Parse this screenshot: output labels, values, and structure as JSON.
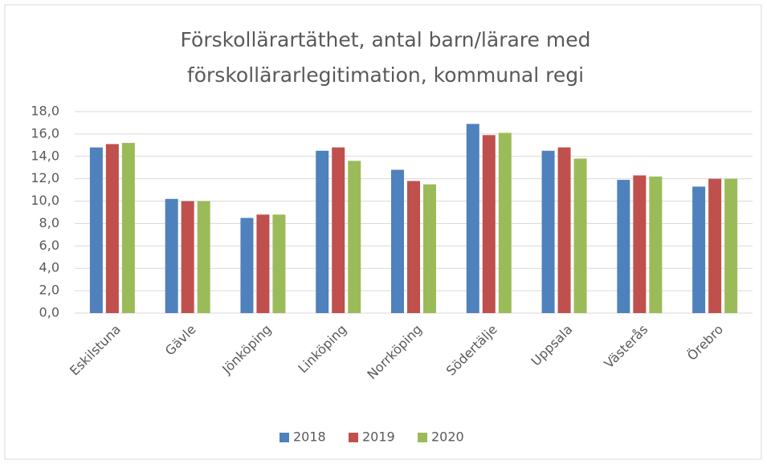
{
  "chart_data": {
    "type": "bar",
    "title": "Förskollärartäthet, antal barn/lärare med förskollärarlegitimation, kommunal regi",
    "categories": [
      "Eskilstuna",
      "Gävle",
      "Jönköping",
      "Linköping",
      "Norrköping",
      "Södertälje",
      "Uppsala",
      "Västerås",
      "Örebro"
    ],
    "series": [
      {
        "name": "2018",
        "color": "#4f81bd",
        "values": [
          14.8,
          10.2,
          8.5,
          14.5,
          12.8,
          16.9,
          14.5,
          11.9,
          11.3
        ]
      },
      {
        "name": "2019",
        "color": "#c0504d",
        "values": [
          15.1,
          10.0,
          8.8,
          14.8,
          11.8,
          15.9,
          14.8,
          12.3,
          12.0
        ]
      },
      {
        "name": "2020",
        "color": "#9bbb59",
        "values": [
          15.2,
          10.0,
          8.8,
          13.6,
          11.5,
          16.1,
          13.8,
          12.2,
          12.0
        ]
      }
    ],
    "ylim": [
      0,
      18
    ],
    "yticks": [
      {
        "value": 0,
        "label": "0,0"
      },
      {
        "value": 2,
        "label": "2,0"
      },
      {
        "value": 4,
        "label": "4,0"
      },
      {
        "value": 6,
        "label": "6,0"
      },
      {
        "value": 8,
        "label": "8,0"
      },
      {
        "value": 10,
        "label": "10,0"
      },
      {
        "value": 12,
        "label": "12,0"
      },
      {
        "value": 14,
        "label": "14,0"
      },
      {
        "value": 16,
        "label": "16,0"
      },
      {
        "value": 18,
        "label": "18,0"
      }
    ],
    "grid": true,
    "legend": "bottom"
  }
}
